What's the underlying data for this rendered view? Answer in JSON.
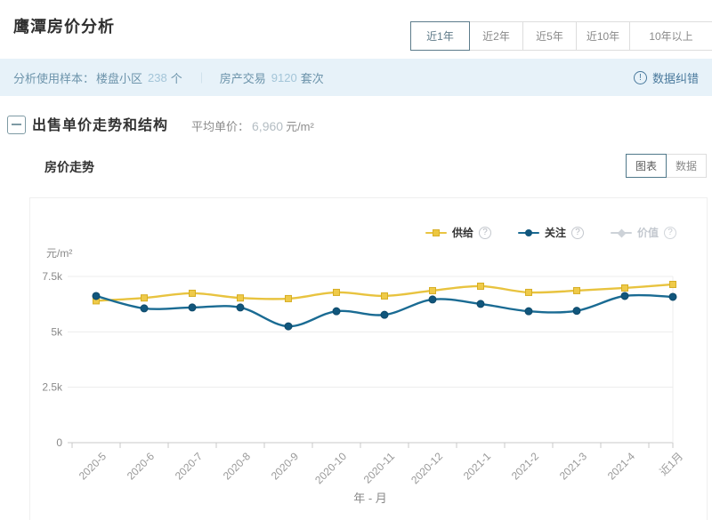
{
  "header": {
    "title": "鹰潭房价分析",
    "range_tabs": [
      {
        "label": "近1年",
        "selected": true
      },
      {
        "label": "近2年",
        "selected": false
      },
      {
        "label": "近5年",
        "selected": false
      },
      {
        "label": "近10年",
        "selected": false
      },
      {
        "label": "10年以上",
        "selected": false
      }
    ]
  },
  "sample_bar": {
    "prefix": "分析使用样本：",
    "item1_label": "楼盘小区",
    "item1_value": "238",
    "item1_unit": "个",
    "divider": "｜",
    "item2_label": "房产交易",
    "item2_value": "9120",
    "item2_unit": "套次",
    "correction_icon_glyph": "!",
    "correction_label": "数据纠错"
  },
  "section": {
    "title": "出售单价走势和结构",
    "avg_label": "平均单价：",
    "avg_value": "6,960",
    "avg_unit": "元/m²"
  },
  "trend": {
    "title": "房价走势",
    "toggle": [
      {
        "label": "图表",
        "selected": true
      },
      {
        "label": "数据",
        "selected": false
      }
    ],
    "help_glyph": "?"
  },
  "chart_data": {
    "type": "line",
    "title": "房价走势",
    "xlabel": "年 - 月",
    "ylabel": "元/m²",
    "ylim": [
      0,
      7500
    ],
    "yticks": [
      {
        "label": "7.5k",
        "value": 7500
      },
      {
        "label": "5k",
        "value": 5000
      },
      {
        "label": "2.5k",
        "value": 2500
      },
      {
        "label": "0",
        "value": 0
      }
    ],
    "grid": true,
    "legend_position": "top-right",
    "categories": [
      "2020-5",
      "2020-6",
      "2020-7",
      "2020-8",
      "2020-9",
      "2020-10",
      "2020-11",
      "2020-12",
      "2021-1",
      "2021-2",
      "2021-3",
      "2021-4",
      "近1月"
    ],
    "series": [
      {
        "name": "供给",
        "marker": "square",
        "line_color": "#e8c33f",
        "marker_fill": "#efca49",
        "marker_stroke": "#d6ae24",
        "disabled": false,
        "values": [
          6400,
          6530,
          6740,
          6530,
          6500,
          6780,
          6620,
          6860,
          7060,
          6780,
          6860,
          6980,
          7140
        ]
      },
      {
        "name": "关注",
        "marker": "circle",
        "line_color": "#1a6b93",
        "marker_fill": "#11567c",
        "marker_stroke": "#0e4a6b",
        "disabled": false,
        "values": [
          6620,
          6060,
          6100,
          6100,
          5250,
          5930,
          5770,
          6460,
          6260,
          5930,
          5950,
          6620,
          6580
        ]
      },
      {
        "name": "价值",
        "marker": "diamond",
        "line_color": "#cdd2d8",
        "marker_fill": "#cdd2d8",
        "marker_stroke": "#cdd2d8",
        "disabled": true,
        "values": []
      }
    ]
  }
}
